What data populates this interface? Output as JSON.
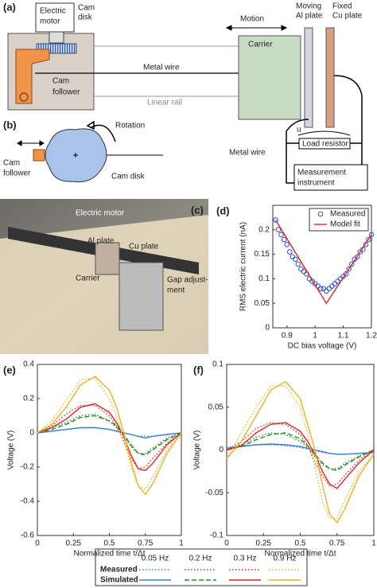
{
  "panel_a": {
    "label": "(a)",
    "electric_motor": [
      "Electric",
      "motor"
    ],
    "cam_disk": [
      "Cam",
      "disk"
    ],
    "cam_follower": [
      "Cam",
      "follower"
    ],
    "metal_wire": "Metal wire",
    "linear_rail": "Linear rail",
    "motion": "Motion",
    "carrier": "Carrier",
    "al_plate": [
      "Moving",
      "Al plate"
    ],
    "cu_plate": [
      "Fixed",
      "Cu plate"
    ],
    "circuit_wire": "Metal wire",
    "u": "u",
    "load_resistor": "Load resistor",
    "instrument": [
      "Measurement",
      "instrument"
    ]
  },
  "panel_b": {
    "label": "(b)",
    "rotation": "Rotation",
    "cam_follower": [
      "Cam",
      "follower"
    ],
    "cam_disk": "Cam disk"
  },
  "panel_c": {
    "label": "(c)",
    "electric_motor": "Electric motor",
    "al_plate": "Al plate",
    "cu_plate": "Cu plate",
    "carrier": "Carrier",
    "gap": [
      "Gap adjust-",
      "ment"
    ]
  },
  "chart_data": [
    {
      "type": "scatter",
      "panel": "(d)",
      "xlabel": "DC bias voltage (V)",
      "ylabel": "RMS electric current (nA)",
      "xlim": [
        0.85,
        1.2
      ],
      "ylim": [
        0,
        0.25
      ],
      "xticks": [
        0.9,
        1,
        1.1,
        1.2
      ],
      "yticks": [
        0,
        0.05,
        0.1,
        0.15,
        0.2
      ],
      "series": [
        {
          "name": "Measured",
          "color": "#2a4fd0",
          "mode": "markers",
          "x": [
            0.86,
            0.87,
            0.88,
            0.89,
            0.9,
            0.91,
            0.92,
            0.93,
            0.94,
            0.95,
            0.96,
            0.97,
            0.98,
            0.99,
            1.0,
            1.01,
            1.02,
            1.03,
            1.04,
            1.05,
            1.06,
            1.07,
            1.08,
            1.09,
            1.1,
            1.11,
            1.12,
            1.13,
            1.14,
            1.15,
            1.16,
            1.17,
            1.18,
            1.19,
            1.2
          ],
          "values": [
            0.22,
            0.2,
            0.19,
            0.18,
            0.17,
            0.155,
            0.145,
            0.14,
            0.13,
            0.12,
            0.115,
            0.11,
            0.1,
            0.095,
            0.09,
            0.085,
            0.08,
            0.08,
            0.075,
            0.08,
            0.085,
            0.09,
            0.095,
            0.1,
            0.105,
            0.11,
            0.12,
            0.13,
            0.14,
            0.145,
            0.155,
            0.16,
            0.17,
            0.18,
            0.19
          ]
        },
        {
          "name": "Model fit",
          "color": "#e0242a",
          "mode": "line",
          "x": [
            0.86,
            1.04,
            1.2
          ],
          "values": [
            0.22,
            0.05,
            0.19
          ]
        }
      ]
    },
    {
      "type": "line",
      "panel": "(e)",
      "xlabel": "Normalized time t/Δt",
      "ylabel": "Voltage (V)",
      "xlim": [
        0,
        1
      ],
      "ylim": [
        -0.6,
        0.4
      ],
      "xticks": [
        0,
        0.25,
        0.5,
        0.75,
        1
      ],
      "yticks": [
        -0.6,
        -0.4,
        -0.2,
        0,
        0.2,
        0.4
      ],
      "x": [
        0,
        0.1,
        0.2,
        0.3,
        0.4,
        0.5,
        0.55,
        0.6,
        0.65,
        0.7,
        0.75,
        0.8,
        0.9,
        1
      ],
      "series": [
        {
          "color": "#3a7fd0",
          "style": "dotted",
          "values": [
            0,
            0.01,
            0.02,
            0.03,
            0.03,
            0.02,
            0.01,
            0,
            -0.01,
            -0.02,
            -0.02,
            -0.02,
            -0.01,
            0
          ]
        },
        {
          "color": "#3a7fd0",
          "style": "solid",
          "values": [
            0,
            0.01,
            0.02,
            0.03,
            0.03,
            0.02,
            0.01,
            0,
            -0.01,
            -0.02,
            -0.03,
            -0.02,
            -0.01,
            0
          ]
        },
        {
          "color": "#1e8a1e",
          "style": "dotted",
          "values": [
            0,
            0.03,
            0.06,
            0.1,
            0.11,
            0.07,
            0.03,
            -0.02,
            -0.08,
            -0.12,
            -0.12,
            -0.09,
            -0.03,
            0
          ]
        },
        {
          "color": "#1e8a1e",
          "style": "dashed",
          "values": [
            0,
            0.02,
            0.05,
            0.09,
            0.1,
            0.07,
            0.04,
            -0.01,
            -0.07,
            -0.12,
            -0.13,
            -0.1,
            -0.04,
            0
          ]
        },
        {
          "color": "#e0242a",
          "style": "dotted",
          "values": [
            0,
            0.04,
            0.11,
            0.16,
            0.16,
            0.1,
            0.04,
            -0.05,
            -0.15,
            -0.21,
            -0.2,
            -0.15,
            -0.06,
            0
          ]
        },
        {
          "color": "#e0242a",
          "style": "solid",
          "values": [
            0,
            0.03,
            0.08,
            0.15,
            0.17,
            0.12,
            0.06,
            -0.02,
            -0.13,
            -0.21,
            -0.22,
            -0.18,
            -0.07,
            0
          ]
        },
        {
          "color": "#e8b420",
          "style": "dotted",
          "values": [
            0,
            0.07,
            0.19,
            0.31,
            0.32,
            0.2,
            0.1,
            -0.04,
            -0.2,
            -0.31,
            -0.33,
            -0.26,
            -0.1,
            0
          ]
        },
        {
          "color": "#e8b420",
          "style": "solid",
          "values": [
            0,
            0.05,
            0.15,
            0.28,
            0.33,
            0.25,
            0.15,
            0,
            -0.17,
            -0.31,
            -0.36,
            -0.3,
            -0.12,
            0
          ]
        }
      ]
    },
    {
      "type": "line",
      "panel": "(f)",
      "xlabel": "Normalized time t/Δt",
      "ylabel": "Voltage (V)",
      "xlim": [
        0,
        1
      ],
      "ylim": [
        -0.1,
        0.1
      ],
      "xticks": [
        0,
        0.25,
        0.5,
        0.75,
        1
      ],
      "yticks": [
        -0.1,
        -0.05,
        0,
        0.05,
        0.1
      ],
      "x": [
        0,
        0.1,
        0.2,
        0.3,
        0.4,
        0.5,
        0.55,
        0.6,
        0.65,
        0.7,
        0.75,
        0.8,
        0.9,
        1
      ],
      "series": [
        {
          "color": "#3a7fd0",
          "style": "dotted",
          "values": [
            0.003,
            0.005,
            0.006,
            0.006,
            0.005,
            0.003,
            0.001,
            -0.001,
            -0.003,
            -0.004,
            -0.005,
            -0.005,
            -0.004,
            -0.003
          ]
        },
        {
          "color": "#3a7fd0",
          "style": "solid",
          "values": [
            0.002,
            0.004,
            0.006,
            0.007,
            0.006,
            0.004,
            0.002,
            0,
            -0.002,
            -0.004,
            -0.005,
            -0.005,
            -0.004,
            -0.003
          ]
        },
        {
          "color": "#1e8a1e",
          "style": "dotted",
          "values": [
            0,
            0.006,
            0.015,
            0.02,
            0.018,
            0.01,
            0.003,
            -0.008,
            -0.017,
            -0.022,
            -0.022,
            -0.016,
            -0.007,
            0
          ]
        },
        {
          "color": "#1e8a1e",
          "style": "dashed",
          "values": [
            0,
            0.004,
            0.012,
            0.018,
            0.02,
            0.013,
            0.005,
            -0.005,
            -0.015,
            -0.022,
            -0.024,
            -0.018,
            -0.008,
            0
          ]
        },
        {
          "color": "#e0242a",
          "style": "dotted",
          "values": [
            0,
            0.01,
            0.025,
            0.032,
            0.03,
            0.018,
            0.005,
            -0.015,
            -0.03,
            -0.042,
            -0.04,
            -0.03,
            -0.012,
            0
          ]
        },
        {
          "color": "#e0242a",
          "style": "solid",
          "values": [
            0,
            0.005,
            0.02,
            0.03,
            0.032,
            0.022,
            0.01,
            -0.005,
            -0.025,
            -0.04,
            -0.045,
            -0.035,
            -0.015,
            0
          ]
        },
        {
          "color": "#e8b420",
          "style": "dotted",
          "values": [
            -0.01,
            0.02,
            0.05,
            0.075,
            0.075,
            0.05,
            0.02,
            -0.02,
            -0.06,
            -0.08,
            -0.08,
            -0.06,
            -0.025,
            -0.005
          ]
        },
        {
          "color": "#e8b420",
          "style": "solid",
          "values": [
            -0.01,
            0.01,
            0.04,
            0.07,
            0.08,
            0.06,
            0.03,
            0,
            -0.04,
            -0.075,
            -0.085,
            -0.07,
            -0.03,
            -0.005
          ]
        }
      ]
    }
  ],
  "legend": {
    "columns": [
      "0.05 Hz",
      "0.2 Hz",
      "0.3 Hz",
      "0.9 Hz"
    ],
    "rows": [
      "Measured",
      "Simulated"
    ],
    "colors": [
      "#3a7fd0",
      "#1e8a1e",
      "#e0242a",
      "#e8b420"
    ],
    "styles": [
      [
        "dotted",
        "dotted",
        "dotted",
        "dotted"
      ],
      [
        "solid",
        "dashed",
        "solid",
        "solid"
      ]
    ]
  }
}
